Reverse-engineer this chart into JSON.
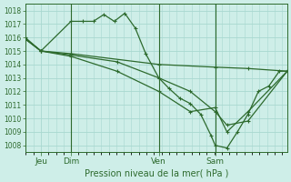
{
  "xlabel": "Pression niveau de la mer( hPa )",
  "ylim": [
    1007.5,
    1018.5
  ],
  "yticks": [
    1008,
    1009,
    1010,
    1011,
    1012,
    1013,
    1014,
    1015,
    1016,
    1017,
    1018
  ],
  "bg_color": "#ceeee8",
  "grid_color": "#a8d8d0",
  "line_color": "#2d6a2d",
  "vline_positions": [
    0.175,
    0.51,
    0.725
  ],
  "xtick_labels": [
    "Jeu",
    "Dim",
    "Ven",
    "Sam"
  ],
  "xtick_pos": [
    0.06,
    0.175,
    0.51,
    0.725
  ],
  "line1_x": [
    0.0,
    0.06,
    0.175,
    0.22,
    0.26,
    0.3,
    0.34,
    0.38,
    0.42,
    0.46,
    0.51,
    0.55,
    0.59,
    0.63,
    0.67,
    0.71,
    0.725,
    0.77,
    0.81,
    0.85,
    0.89,
    0.93,
    0.97,
    1.0
  ],
  "line1_y": [
    1015.9,
    1015.0,
    1017.2,
    1017.2,
    1017.2,
    1017.7,
    1017.2,
    1017.8,
    1016.7,
    1014.8,
    1013.0,
    1012.2,
    1011.5,
    1011.1,
    1010.3,
    1008.7,
    1008.0,
    1007.8,
    1009.0,
    1010.3,
    1012.0,
    1012.4,
    1013.5,
    1013.5
  ],
  "line2_x": [
    0.0,
    0.06,
    0.175,
    0.51,
    0.725,
    0.85,
    1.0
  ],
  "line2_y": [
    1016.0,
    1015.0,
    1014.8,
    1014.0,
    1013.8,
    1013.7,
    1013.5
  ],
  "line3_x": [
    0.0,
    0.06,
    0.175,
    0.35,
    0.51,
    0.63,
    0.725,
    0.77,
    0.85,
    1.0
  ],
  "line3_y": [
    1015.9,
    1015.0,
    1014.7,
    1014.2,
    1013.0,
    1012.0,
    1010.5,
    1009.5,
    1009.8,
    1013.5
  ],
  "line4_x": [
    0.0,
    0.06,
    0.175,
    0.35,
    0.51,
    0.63,
    0.725,
    0.77,
    0.85,
    1.0
  ],
  "line4_y": [
    1015.9,
    1015.0,
    1014.6,
    1013.5,
    1012.0,
    1010.5,
    1010.8,
    1009.0,
    1010.5,
    1013.5
  ]
}
